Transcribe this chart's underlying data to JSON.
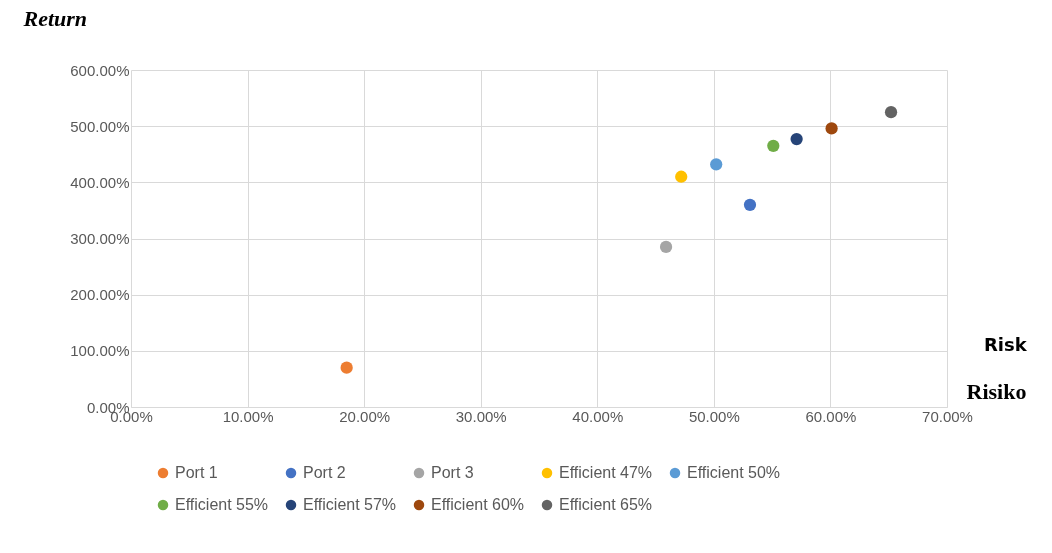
{
  "chart_data": {
    "type": "scatter",
    "ylabel": "Return",
    "xlabel": "Risiko",
    "annotations": [
      "Risk"
    ],
    "xlim": [
      0,
      70
    ],
    "ylim": [
      0,
      600
    ],
    "xticks": [
      {
        "value": 0,
        "label": "0.00%"
      },
      {
        "value": 10,
        "label": "10.00%"
      },
      {
        "value": 20,
        "label": "20.00%"
      },
      {
        "value": 30,
        "label": "30.00%"
      },
      {
        "value": 40,
        "label": "40.00%"
      },
      {
        "value": 50,
        "label": "50.00%"
      },
      {
        "value": 60,
        "label": "60.00%"
      },
      {
        "value": 70,
        "label": "70.00%"
      }
    ],
    "yticks": [
      {
        "value": 0,
        "label": "0.00%"
      },
      {
        "value": 100,
        "label": "100.00%"
      },
      {
        "value": 200,
        "label": "200.00%"
      },
      {
        "value": 300,
        "label": "300.00%"
      },
      {
        "value": 400,
        "label": "400.00%"
      },
      {
        "value": 500,
        "label": "500.00%"
      },
      {
        "value": 600,
        "label": "600.00%"
      }
    ],
    "grid": true,
    "legend": "bottom",
    "marker": "circle",
    "series": [
      {
        "name": "Port 1",
        "color": "#ed7d31",
        "x": [
          18.5
        ],
        "values": [
          70
        ]
      },
      {
        "name": "Port 2",
        "color": "#4472c4",
        "x": [
          53.1
        ],
        "values": [
          360
        ]
      },
      {
        "name": "Port 3",
        "color": "#a5a5a5",
        "x": [
          45.9
        ],
        "values": [
          285
        ]
      },
      {
        "name": "Efficient 47%",
        "color": "#ffc000",
        "x": [
          47.2
        ],
        "values": [
          410
        ]
      },
      {
        "name": "Efficient 50%",
        "color": "#5b9bd5",
        "x": [
          50.2
        ],
        "values": [
          432
        ]
      },
      {
        "name": "Efficient 55%",
        "color": "#70ad47",
        "x": [
          55.1
        ],
        "values": [
          465
        ]
      },
      {
        "name": "Efficient 57%",
        "color": "#264478",
        "x": [
          57.1
        ],
        "values": [
          477
        ]
      },
      {
        "name": "Efficient 60%",
        "color": "#9e480e",
        "x": [
          60.1
        ],
        "values": [
          496
        ]
      },
      {
        "name": "Efficient 65%",
        "color": "#636363",
        "x": [
          65.2
        ],
        "values": [
          525
        ]
      }
    ]
  }
}
